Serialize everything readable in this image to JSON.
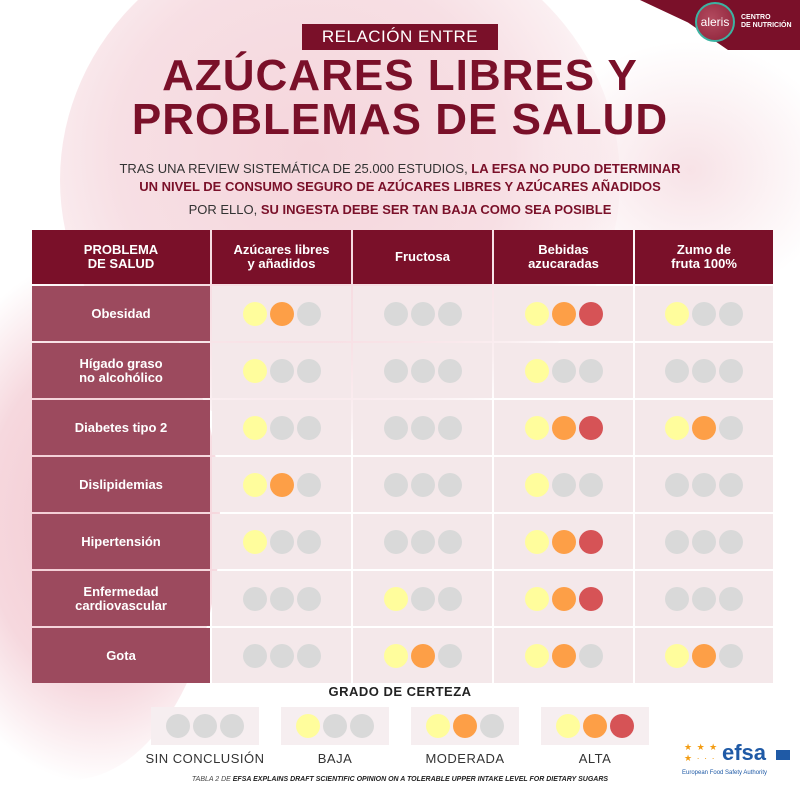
{
  "brand": {
    "logo_text": "aleris",
    "logo_subtitle_line1": "CENTRO",
    "logo_subtitle_line2": "DE NUTRICIÓN"
  },
  "header": {
    "subtitle": "RELACIÓN ENTRE",
    "title_line1": "AZÚCARES LIBRES Y",
    "title_line2": "PROBLEMAS DE SALUD",
    "intro_part1": "TRAS UNA REVIEW SISTEMÁTICA DE 25.000 ESTUDIOS, ",
    "intro_part2": "LA EFSA NO PUDO DETERMINAR",
    "intro_part3": "UN NIVEL DE CONSUMO SEGURO DE AZÚCARES LIBRES Y AZÚCARES AÑADIDOS",
    "conclusion_part1": "POR ELLO, ",
    "conclusion_part2": "SU INGESTA DEBE SER TAN BAJA COMO SEA POSIBLE"
  },
  "table": {
    "headers": [
      "PROBLEMA\nDE SALUD",
      "Azúcares libres\ny añadidos",
      "Fructosa",
      "Bebidas\nazucaradas",
      "Zumo de\nfruta 100%"
    ],
    "rows": [
      {
        "problem": "Obesidad",
        "levels": [
          2,
          0,
          3,
          1
        ]
      },
      {
        "problem": "Hígado graso\nno alcohólico",
        "levels": [
          1,
          0,
          1,
          0
        ]
      },
      {
        "problem": "Diabetes tipo 2",
        "levels": [
          1,
          0,
          3,
          2
        ]
      },
      {
        "problem": "Dislipidemias",
        "levels": [
          2,
          0,
          1,
          0
        ]
      },
      {
        "problem": "Hipertensión",
        "levels": [
          1,
          0,
          3,
          0
        ]
      },
      {
        "problem": "Enfermedad\ncardiovascular",
        "levels": [
          0,
          1,
          3,
          0
        ]
      },
      {
        "problem": "Gota",
        "levels": [
          0,
          2,
          2,
          2
        ]
      }
    ]
  },
  "legend": {
    "title": "GRADO DE CERTEZA",
    "items": [
      {
        "label": "SIN CONCLUSIÓN",
        "level": 0
      },
      {
        "label": "BAJA",
        "level": 1
      },
      {
        "label": "MODERADA",
        "level": 2
      },
      {
        "label": "ALTA",
        "level": 3
      }
    ]
  },
  "colors": {
    "brand": "#7a1029",
    "row_header": "#9c4a5e",
    "cell_bg": "#f4e8ea",
    "dot_none": "#d9d9d9",
    "dot_low": "#fffd9c",
    "dot_moderate": "#fd9f47",
    "dot_high": "#d65356"
  },
  "footer": {
    "source_prefix": "TABLA 2 DE ",
    "source_title": "EFSA EXPLAINS DRAFT SCIENTIFIC OPINION ON A TOLERABLE UPPER INTAKE LEVEL FOR DIETARY SUGARS",
    "efsa_word": "efsa",
    "efsa_tagline": "European Food Safety Authority"
  }
}
